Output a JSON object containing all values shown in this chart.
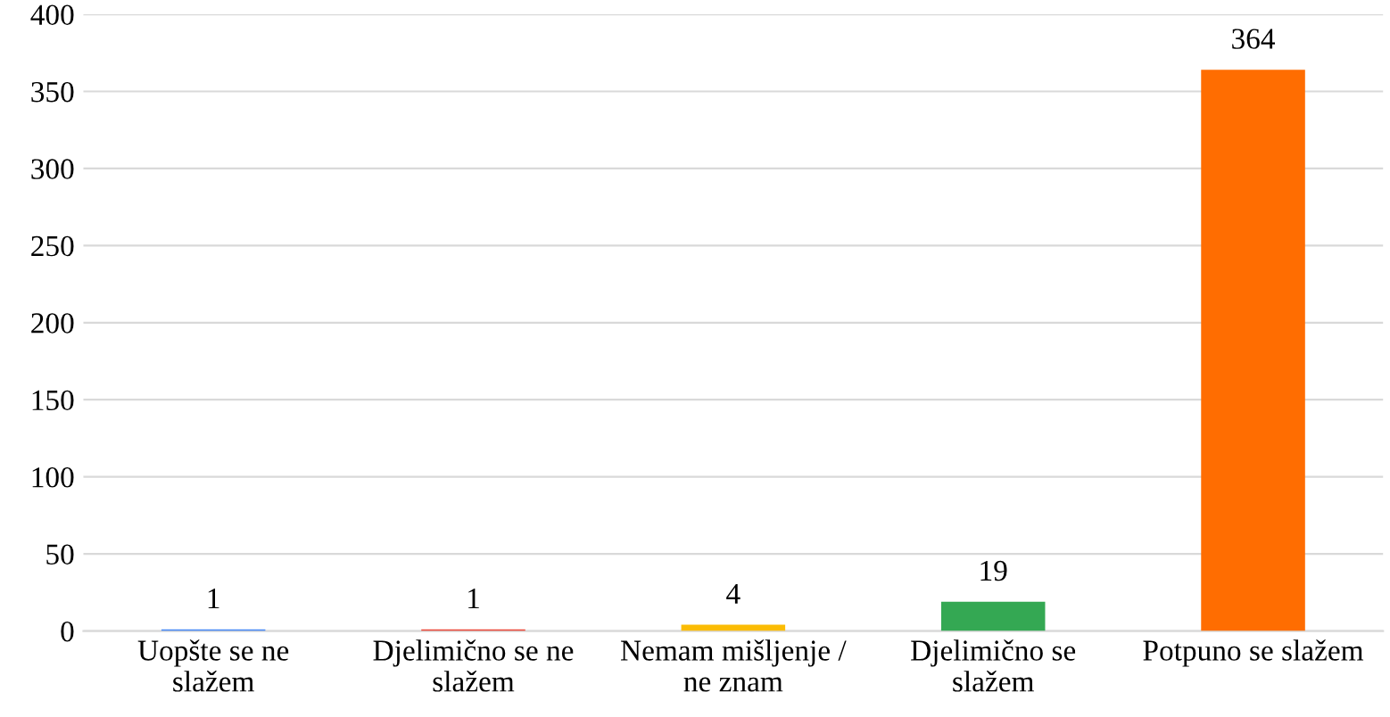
{
  "chart_data": {
    "type": "bar",
    "categories": [
      "Uopšte se ne\nslažem",
      "Djelimično se ne\nslažem",
      "Nemam mišljenje /\nne znam",
      "Djelimično se\nslažem",
      "Potpuno se slažem"
    ],
    "values": [
      1,
      1,
      4,
      19,
      364
    ],
    "colors": [
      "#4285f4",
      "#ea4335",
      "#fbbc04",
      "#34a853",
      "#ff6d01"
    ],
    "ylim": [
      0,
      400
    ],
    "yticks": [
      0,
      50,
      100,
      150,
      200,
      250,
      300,
      350,
      400
    ],
    "grid": "y",
    "data_labels": true
  }
}
